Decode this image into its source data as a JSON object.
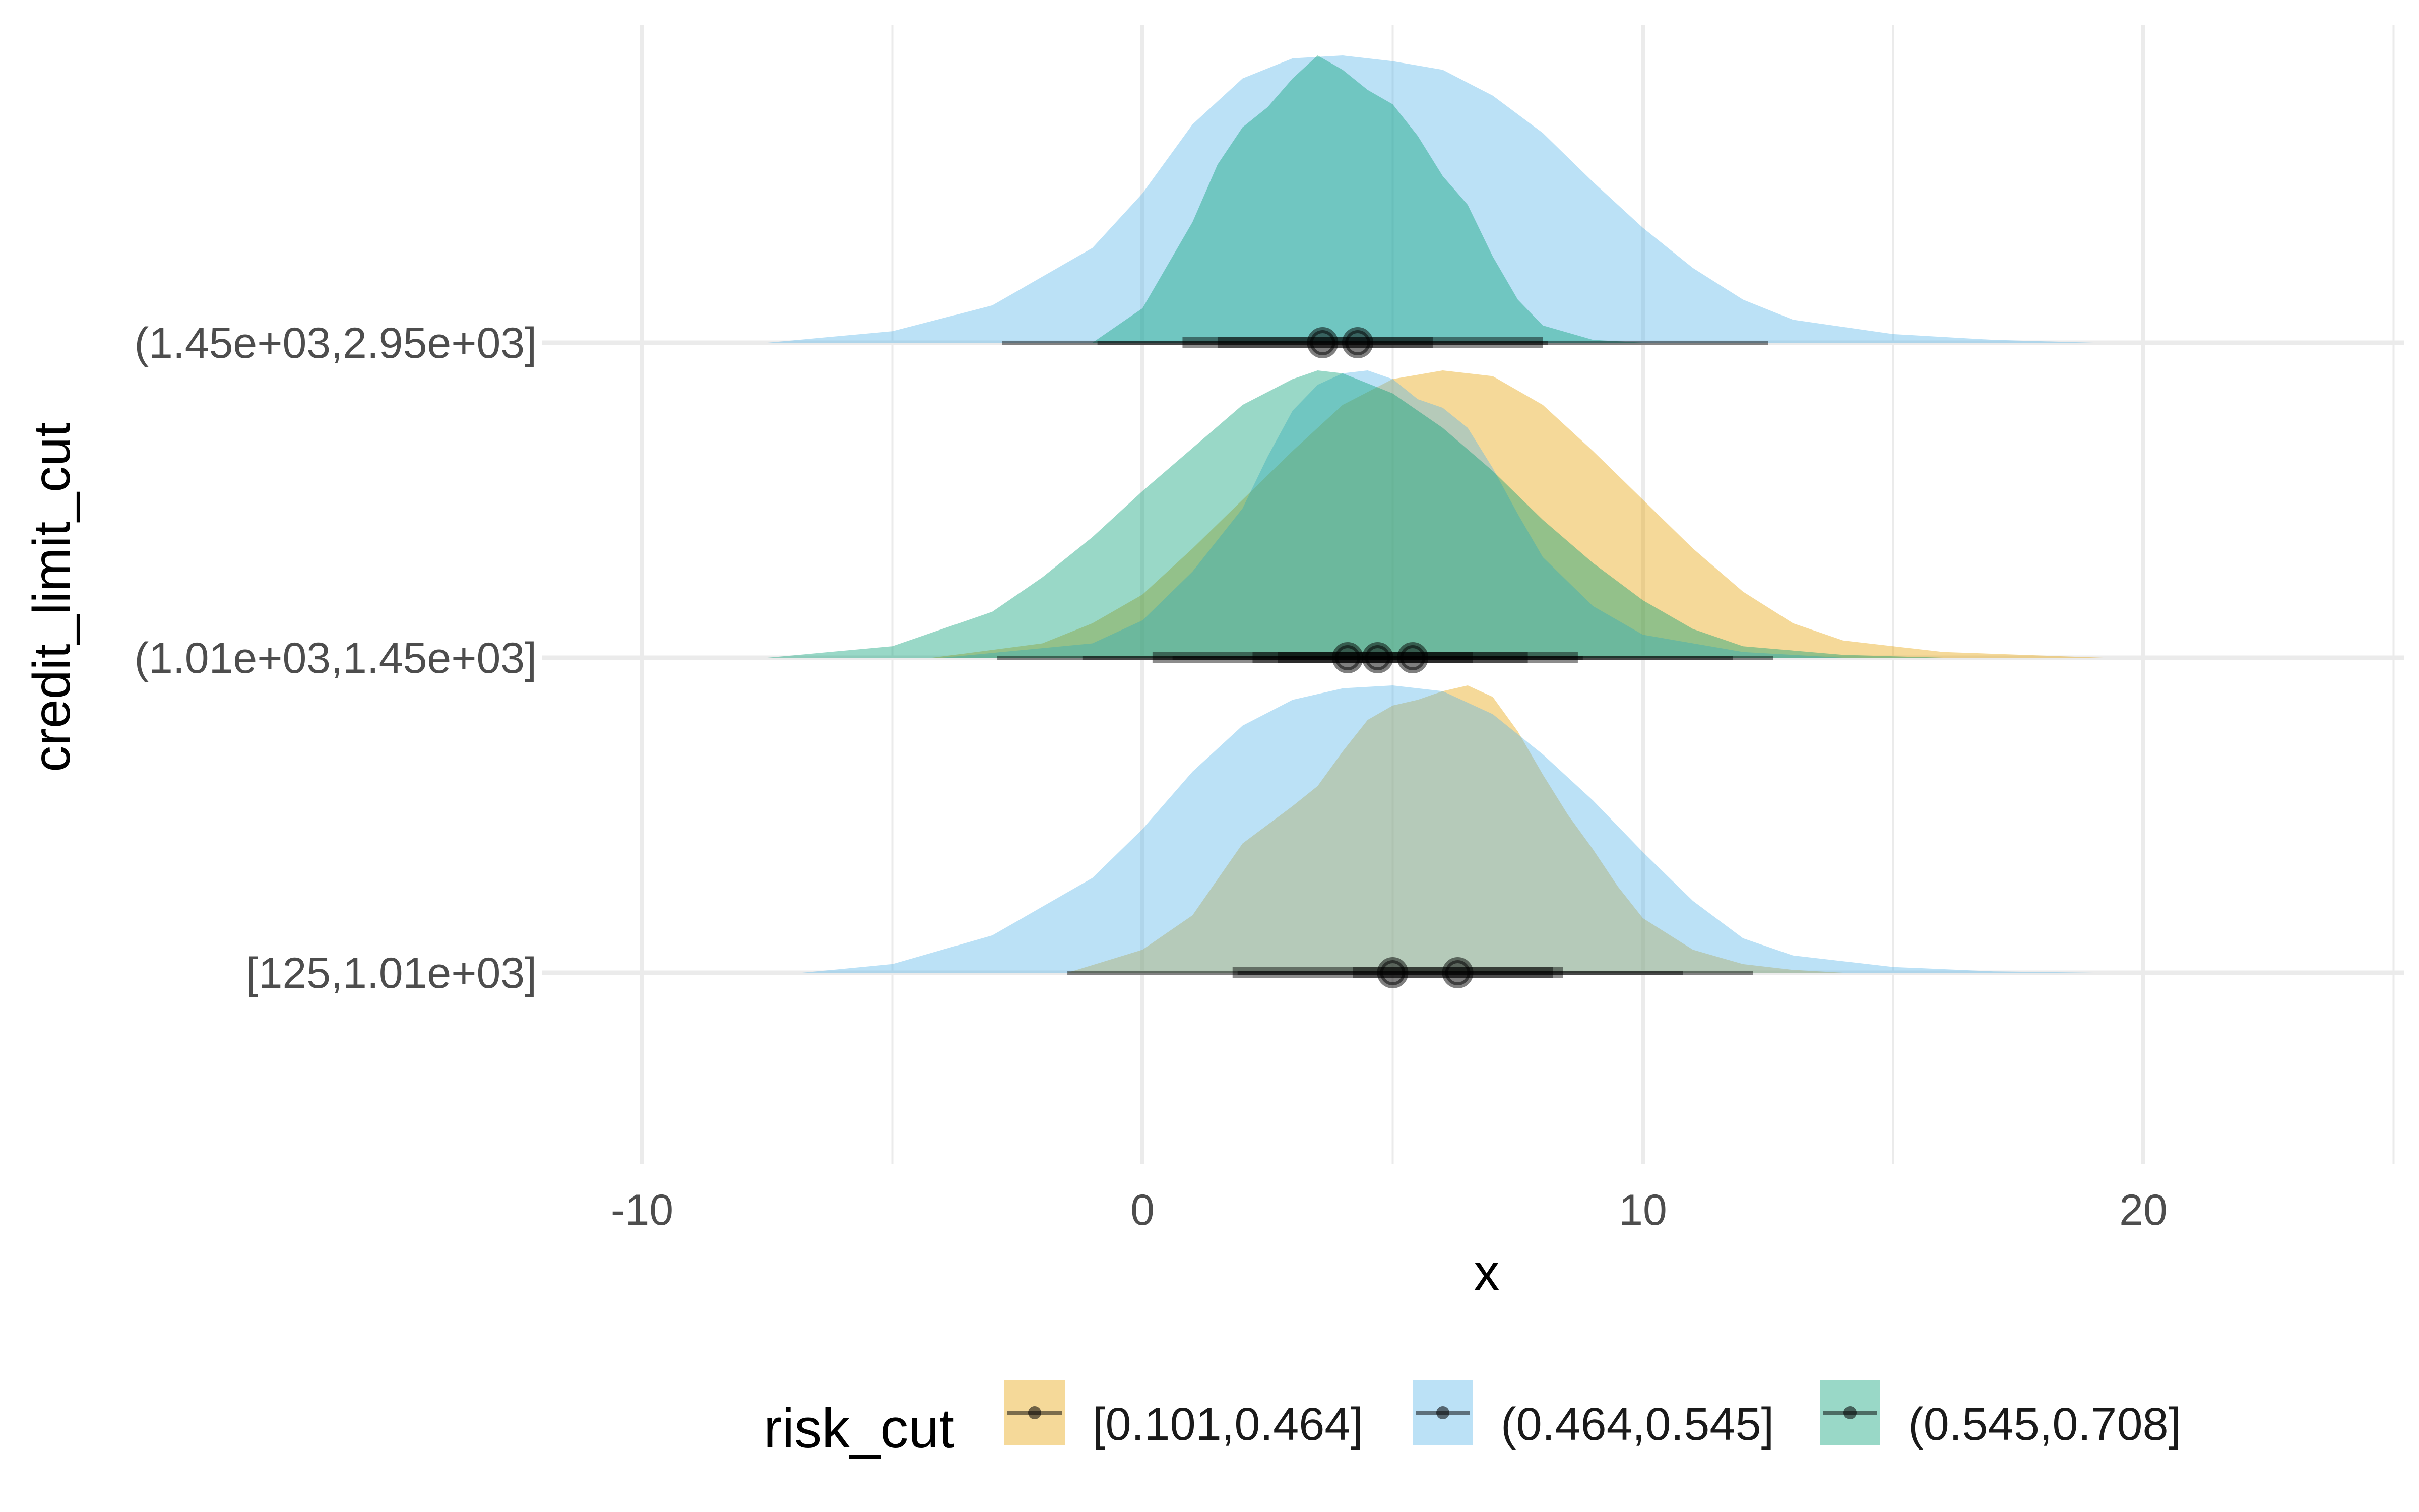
{
  "chart_data": {
    "type": "ridgeline",
    "xlabel": "x",
    "ylabel": "credit_limit_cut",
    "xlim": [
      -12.5,
      25.5
    ],
    "x_ticks": [
      "-10",
      "0",
      "10",
      "20"
    ],
    "x_tick_values": [
      -10,
      0,
      10,
      20
    ],
    "categories": [
      "[125,1.01e+03]",
      "(1.01e+03,1.45e+03]",
      "(1.45e+03,2.95e+03]"
    ],
    "grid": true,
    "legend": {
      "title": "risk_cut",
      "position": "bottom",
      "entries": [
        "[0.101,0.464]",
        "(0.464,0.545]",
        "(0.545,0.708]"
      ]
    },
    "series": [
      {
        "name": "[0.101,0.464]",
        "color": "#E69F00",
        "opacity": 0.4,
        "groups": [
          {
            "category": "[125,1.01e+03]",
            "density_x": [
              -1.5,
              0,
              1,
              2,
              3,
              3.5,
              4,
              4.5,
              5,
              5.5,
              6,
              6.5,
              7,
              7.5,
              8,
              8.5,
              9,
              9.5,
              10,
              11,
              12,
              13,
              14
            ],
            "density_y": [
              0,
              0.08,
              0.2,
              0.45,
              0.58,
              0.65,
              0.77,
              0.88,
              0.93,
              0.95,
              0.98,
              1.0,
              0.96,
              0.84,
              0.69,
              0.55,
              0.43,
              0.3,
              0.19,
              0.08,
              0.03,
              0.01,
              0
            ],
            "median": 6.3,
            "interval_66": [
              4.2,
              8.4
            ],
            "interval_95": [
              1.9,
              10.8
            ]
          },
          {
            "category": "(1.01e+03,1.45e+03]",
            "density_x": [
              -4.2,
              -2,
              -1,
              0,
              1,
              2,
              3,
              4,
              5,
              6,
              7,
              8,
              9,
              10,
              11,
              12,
              13,
              14,
              16,
              19.2
            ],
            "density_y": [
              0,
              0.05,
              0.12,
              0.22,
              0.38,
              0.55,
              0.72,
              0.88,
              0.97,
              1.0,
              0.98,
              0.88,
              0.72,
              0.55,
              0.38,
              0.23,
              0.12,
              0.06,
              0.02,
              0
            ],
            "median": 5.4,
            "interval_66": [
              2.2,
              8.7
            ],
            "interval_95": [
              -1.2,
              12.6
            ]
          }
        ]
      },
      {
        "name": "(0.464,0.545]",
        "color": "#56B4E9",
        "opacity": 0.4,
        "groups": [
          {
            "category": "[125,1.01e+03]",
            "density_x": [
              -6.8,
              -5,
              -3,
              -1,
              0,
              1,
              2,
              3,
              4,
              5,
              6,
              7,
              8,
              9,
              10,
              11,
              12,
              13,
              15,
              17,
              19
            ],
            "density_y": [
              0,
              0.03,
              0.13,
              0.33,
              0.5,
              0.7,
              0.86,
              0.95,
              0.99,
              1.0,
              0.98,
              0.9,
              0.76,
              0.6,
              0.42,
              0.25,
              0.12,
              0.06,
              0.02,
              0.005,
              0
            ],
            "median": 5.0,
            "interval_66": [
              1.8,
              8.2
            ],
            "interval_95": [
              -1.5,
              12.2
            ]
          },
          {
            "category": "(1.01e+03,1.45e+03]",
            "density_x": [
              -4,
              -1,
              0,
              1,
              2,
              2.5,
              3,
              3.5,
              4,
              4.5,
              5,
              5.5,
              6,
              6.5,
              7,
              7.5,
              8,
              9,
              10,
              12,
              14
            ],
            "density_y": [
              0,
              0.05,
              0.13,
              0.3,
              0.52,
              0.7,
              0.86,
              0.95,
              0.99,
              1.0,
              0.97,
              0.9,
              0.87,
              0.8,
              0.66,
              0.5,
              0.35,
              0.18,
              0.08,
              0.02,
              0
            ],
            "median": 4.7,
            "interval_66": [
              2.7,
              6.6
            ],
            "interval_95": [
              0.6,
              8.8
            ]
          },
          {
            "category": "(1.45e+03,2.95e+03]",
            "density_x": [
              -7.5,
              -5,
              -3,
              -1,
              0,
              1,
              2,
              3,
              4,
              5,
              6,
              7,
              8,
              9,
              10,
              11,
              12,
              13,
              15,
              17,
              19
            ],
            "density_y": [
              0,
              0.04,
              0.13,
              0.33,
              0.52,
              0.76,
              0.92,
              0.99,
              1.0,
              0.98,
              0.95,
              0.86,
              0.73,
              0.56,
              0.4,
              0.26,
              0.15,
              0.08,
              0.03,
              0.01,
              0
            ],
            "median": 4.3,
            "interval_66": [
              1.5,
              8.0
            ],
            "interval_95": [
              -2.8,
              12.5
            ]
          }
        ]
      },
      {
        "name": "(0.545,0.708]",
        "color": "#009E73",
        "opacity": 0.4,
        "groups": [
          {
            "category": "(1.01e+03,1.45e+03]",
            "density_x": [
              -7.5,
              -5,
              -3,
              -2,
              -1,
              0,
              1,
              2,
              3,
              3.5,
              4,
              5,
              6,
              7,
              8,
              9,
              10,
              11,
              12,
              14,
              16
            ],
            "density_y": [
              0,
              0.04,
              0.16,
              0.28,
              0.42,
              0.58,
              0.73,
              0.88,
              0.97,
              1.0,
              0.99,
              0.92,
              0.8,
              0.65,
              0.48,
              0.33,
              0.2,
              0.1,
              0.04,
              0.01,
              0
            ],
            "median": 4.1,
            "interval_66": [
              0.2,
              7.7
            ],
            "interval_95": [
              -2.9,
              11.8
            ]
          },
          {
            "category": "(1.45e+03,2.95e+03]",
            "density_x": [
              -1,
              0,
              1,
              1.5,
              2,
              2.5,
              3,
              3.5,
              4,
              4.5,
              5,
              5.5,
              6,
              6.5,
              7,
              7.5,
              8,
              9,
              10
            ],
            "density_y": [
              0,
              0.12,
              0.42,
              0.62,
              0.75,
              0.82,
              0.92,
              1.0,
              0.95,
              0.88,
              0.83,
              0.72,
              0.58,
              0.48,
              0.3,
              0.15,
              0.06,
              0.01,
              0
            ],
            "median": 3.6,
            "interval_66": [
              0.8,
              5.8
            ],
            "interval_95": [
              -0.9,
              8.1
            ]
          }
        ]
      }
    ]
  }
}
